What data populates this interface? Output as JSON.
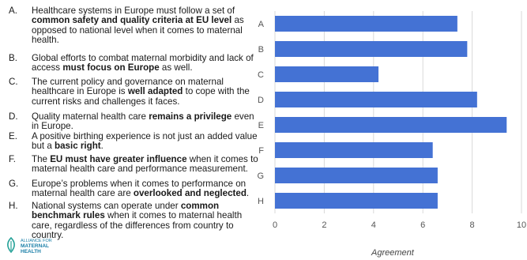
{
  "statements": [
    {
      "letter": "A.",
      "parts": [
        {
          "t": "Healthcare systems in Europe must follow a set of "
        },
        {
          "t": "common safety and quality criteria at EU level",
          "b": true
        },
        {
          "t": " as opposed to national level when it comes to maternal health."
        }
      ]
    },
    {
      "letter": "B.",
      "parts": [
        {
          "t": "Global efforts to combat maternal morbidity and lack of access "
        },
        {
          "t": "must focus on Europe",
          "b": true
        },
        {
          "t": " as well."
        }
      ]
    },
    {
      "letter": "C.",
      "parts": [
        {
          "t": "The current policy and governance on maternal healthcare in Europe is "
        },
        {
          "t": "well adapted",
          "b": true
        },
        {
          "t": " to cope with the current risks and challenges it faces."
        }
      ]
    },
    {
      "letter": "D.",
      "parts": [
        {
          "t": "Quality maternal health care "
        },
        {
          "t": "remains a privilege",
          "b": true
        },
        {
          "t": " even in Europe."
        }
      ]
    },
    {
      "letter": "E.",
      "parts": [
        {
          "t": "A positive birthing experience is not just an added value but a "
        },
        {
          "t": "basic right",
          "b": true
        },
        {
          "t": "."
        }
      ]
    },
    {
      "letter": "F.",
      "parts": [
        {
          "t": "The "
        },
        {
          "t": "EU must have greater influence",
          "b": true
        },
        {
          "t": " when it comes to maternal health care and performance measurement."
        }
      ]
    },
    {
      "letter": "G.",
      "parts": [
        {
          "t": "Europe’s problems when it comes to performance on maternal health care are "
        },
        {
          "t": "overlooked and neglected",
          "b": true
        },
        {
          "t": "."
        }
      ]
    },
    {
      "letter": "H.",
      "parts": [
        {
          "t": "National systems can operate under "
        },
        {
          "t": "common benchmark rules",
          "b": true
        },
        {
          "t": " when it comes to maternal health care, regardless of the differences from country to country."
        }
      ]
    }
  ],
  "logo": {
    "line1": "ALLIANCE FOR",
    "line2": "MATERNAL",
    "line3": "HEALTH"
  },
  "chart_data": {
    "type": "bar",
    "orientation": "horizontal",
    "categories": [
      "A",
      "B",
      "C",
      "D",
      "E",
      "F",
      "G",
      "H"
    ],
    "values": [
      7.4,
      7.8,
      4.2,
      8.2,
      9.4,
      6.4,
      6.6,
      6.6
    ],
    "xlabel": "Agreement",
    "ylabel": "",
    "xlim": [
      0,
      10
    ],
    "xticks": [
      0,
      2,
      4,
      6,
      8,
      10
    ],
    "grid": true,
    "bar_color": "#4472d4",
    "grid_color": "#d9d9d9"
  }
}
